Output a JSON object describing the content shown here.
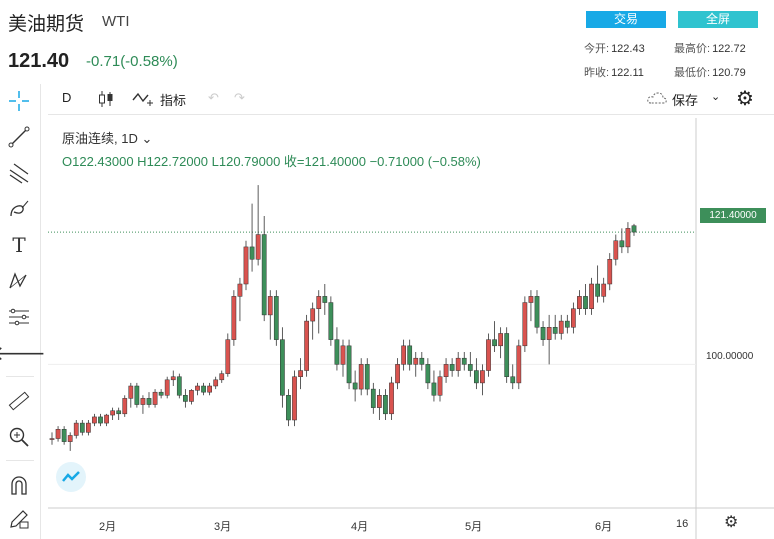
{
  "header": {
    "title": "美油期货",
    "symbol": "WTI",
    "price": "121.40",
    "change": "-0.71(-0.58%)",
    "trade_button": "交易",
    "fullscreen_button": "全屏"
  },
  "stats": {
    "open_label": "今开:",
    "open": "122.43",
    "high_label": "最高价:",
    "high": "122.72",
    "prev_label": "昨收:",
    "prev": "122.11",
    "low_label": "最低价:",
    "low": "120.79"
  },
  "toolbar": {
    "interval": "D",
    "indicators": "指标",
    "save": "保存"
  },
  "chart_info": {
    "series_name": "原油连续, 1D",
    "ohlc": "O122.43000 H122.72000 L120.79000 收=121.40000 −0.71000 (−0.58%)"
  },
  "colors": {
    "up": "#d9534f",
    "down": "#3d8f5a",
    "accent": "#18a9e6"
  },
  "chart_data": {
    "type": "candlestick",
    "x_ticks": [
      "2月",
      "3月",
      "4月",
      "5月",
      "6月",
      "16"
    ],
    "y_ticks": [
      "100.00000"
    ],
    "price_label": "121.40000",
    "last_price": 121.4,
    "ylim": [
      80,
      135
    ],
    "candles": [
      [
        88,
        89,
        87,
        88
      ],
      [
        88,
        90,
        87.5,
        89.5
      ],
      [
        89.5,
        90,
        87,
        87.5
      ],
      [
        87.5,
        89,
        86,
        88.5
      ],
      [
        88.5,
        91,
        88,
        90.5
      ],
      [
        90.5,
        91,
        88.5,
        89
      ],
      [
        89,
        91,
        88.5,
        90.5
      ],
      [
        90.5,
        92,
        90,
        91.5
      ],
      [
        91.5,
        92,
        90,
        90.5
      ],
      [
        90.5,
        92,
        90,
        91.8
      ],
      [
        91.8,
        93,
        91,
        92.5
      ],
      [
        92.5,
        93,
        91,
        92
      ],
      [
        92,
        95,
        91.5,
        94.5
      ],
      [
        94.5,
        97,
        93,
        96.5
      ],
      [
        96.5,
        97,
        93,
        93.5
      ],
      [
        93.5,
        95,
        92,
        94.5
      ],
      [
        94.5,
        95.5,
        93,
        93.5
      ],
      [
        93.5,
        96,
        93,
        95.5
      ],
      [
        95.5,
        96,
        94.5,
        95
      ],
      [
        95,
        98,
        94.5,
        97.5
      ],
      [
        97.5,
        99,
        96.5,
        98
      ],
      [
        98,
        98.5,
        94.5,
        95
      ],
      [
        95,
        96,
        93,
        94
      ],
      [
        94,
        96,
        93.5,
        95.8
      ],
      [
        95.8,
        97,
        95,
        96.5
      ],
      [
        96.5,
        97,
        95,
        95.5
      ],
      [
        95.5,
        97,
        95,
        96.5
      ],
      [
        96.5,
        98,
        96,
        97.5
      ],
      [
        97.5,
        99,
        97,
        98.5
      ],
      [
        98.5,
        105,
        98,
        104
      ],
      [
        104,
        112,
        103,
        111
      ],
      [
        111,
        114,
        107,
        113
      ],
      [
        113,
        120,
        112,
        119
      ],
      [
        119,
        126,
        115,
        117
      ],
      [
        117,
        129,
        116,
        121
      ],
      [
        121,
        124,
        107,
        108
      ],
      [
        108,
        112,
        104,
        111
      ],
      [
        111,
        112,
        103,
        104
      ],
      [
        104,
        106,
        93,
        95
      ],
      [
        95,
        96,
        90,
        91
      ],
      [
        91,
        99,
        90,
        98
      ],
      [
        98,
        101,
        96,
        99
      ],
      [
        99,
        108,
        98,
        107
      ],
      [
        107,
        110,
        104,
        109
      ],
      [
        109,
        112,
        105,
        111
      ],
      [
        111,
        113,
        108,
        110
      ],
      [
        110,
        111,
        103,
        104
      ],
      [
        104,
        106,
        99,
        100
      ],
      [
        100,
        104,
        98,
        103
      ],
      [
        103,
        104,
        96,
        97
      ],
      [
        97,
        99,
        94,
        96
      ],
      [
        96,
        101,
        95,
        100
      ],
      [
        100,
        101,
        95,
        96
      ],
      [
        96,
        97,
        92,
        93
      ],
      [
        93,
        96,
        91,
        95
      ],
      [
        95,
        96,
        91,
        92
      ],
      [
        92,
        98,
        91,
        97
      ],
      [
        97,
        101,
        96,
        100
      ],
      [
        100,
        104,
        99,
        103
      ],
      [
        103,
        104,
        99,
        100
      ],
      [
        100,
        102,
        98,
        101
      ],
      [
        101,
        102,
        99,
        100
      ],
      [
        100,
        101,
        96,
        97
      ],
      [
        97,
        99,
        94,
        95
      ],
      [
        95,
        99,
        94,
        98
      ],
      [
        98,
        101,
        97,
        100
      ],
      [
        100,
        101,
        98,
        99
      ],
      [
        99,
        102,
        98,
        101
      ],
      [
        101,
        102,
        99,
        100
      ],
      [
        100,
        102,
        98,
        99
      ],
      [
        99,
        101,
        96,
        97
      ],
      [
        97,
        100,
        95,
        99
      ],
      [
        99,
        105,
        98,
        104
      ],
      [
        104,
        107,
        102,
        103
      ],
      [
        103,
        106,
        101,
        105
      ],
      [
        105,
        106,
        97,
        98
      ],
      [
        98,
        100,
        96,
        97
      ],
      [
        97,
        104,
        96,
        103
      ],
      [
        103,
        111,
        102,
        110
      ],
      [
        110,
        112,
        107,
        111
      ],
      [
        111,
        112,
        105,
        106
      ],
      [
        106,
        107,
        103,
        104
      ],
      [
        104,
        108,
        100,
        106
      ],
      [
        106,
        108,
        104,
        105
      ],
      [
        105,
        108,
        104,
        107
      ],
      [
        107,
        108,
        105,
        106
      ],
      [
        106,
        110,
        105,
        109
      ],
      [
        109,
        112,
        108,
        111
      ],
      [
        111,
        113,
        108,
        109
      ],
      [
        109,
        114,
        108,
        113
      ],
      [
        113,
        116,
        110,
        111
      ],
      [
        111,
        114,
        110,
        113
      ],
      [
        113,
        118,
        112,
        117
      ],
      [
        117,
        121,
        116,
        120
      ],
      [
        120,
        122,
        118,
        119
      ],
      [
        119,
        123,
        118,
        122
      ],
      [
        122.43,
        122.72,
        120.79,
        121.4
      ]
    ]
  }
}
